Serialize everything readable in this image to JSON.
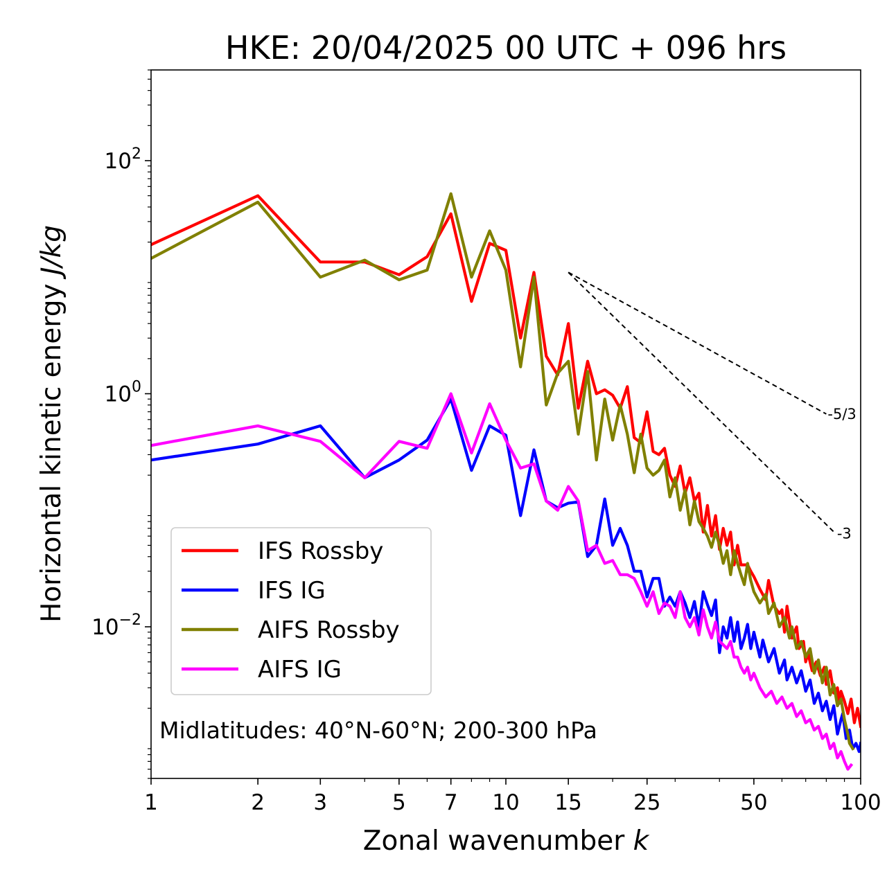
{
  "chart_data": {
    "type": "line",
    "title": "HKE: 20/04/2025 00 UTC + 096 hrs",
    "xlabel": "Zonal wavenumber k",
    "xlabel_parts": {
      "text": "Zonal wavenumber ",
      "var": "k"
    },
    "ylabel": "Horizontal kinetic energy J/kg",
    "ylabel_parts": {
      "text": "Horizontal kinetic energy ",
      "unit": "J/kg"
    },
    "x_scale": "log",
    "y_scale": "log",
    "xlim": [
      1,
      100
    ],
    "ylim": [
      0.0005,
      600
    ],
    "x_ticks": [
      1,
      2,
      3,
      5,
      7,
      10,
      15,
      25,
      50,
      100
    ],
    "x_tick_labels": [
      "1",
      "2",
      "3",
      "5",
      "7",
      "10",
      "15",
      "25",
      "50",
      "100"
    ],
    "y_ticks": [
      {
        "value": 100,
        "base": "10",
        "exp": "2"
      },
      {
        "value": 1,
        "base": "10",
        "exp": "0"
      },
      {
        "value": 0.01,
        "base": "10",
        "exp": "−2"
      }
    ],
    "grid": false,
    "legend_position": "lower-left",
    "annotation": "Midlatitudes: 40°N-60°N; 200-300 hPa",
    "reference_slopes": [
      {
        "label": "-5/3",
        "x": [
          15,
          80
        ],
        "y": [
          11,
          0.67
        ]
      },
      {
        "label": "-3",
        "x": [
          15,
          85
        ],
        "y": [
          11,
          0.063
        ]
      }
    ],
    "series": [
      {
        "name": "IFS Rossby",
        "color": "#ff0000",
        "points": [
          [
            1,
            19
          ],
          [
            2,
            50
          ],
          [
            3,
            13.5
          ],
          [
            4,
            13.5
          ],
          [
            5,
            10.5
          ],
          [
            6,
            15
          ],
          [
            7,
            35
          ],
          [
            8,
            6.2
          ],
          [
            9,
            19.5
          ],
          [
            10,
            17
          ],
          [
            11,
            3
          ],
          [
            12,
            11
          ],
          [
            13,
            2.1
          ],
          [
            14,
            1.45
          ],
          [
            15,
            4
          ],
          [
            16,
            0.75
          ],
          [
            17,
            1.9
          ],
          [
            18,
            1.0
          ],
          [
            19,
            1.08
          ],
          [
            20,
            0.97
          ],
          [
            21,
            0.75
          ],
          [
            22,
            1.15
          ],
          [
            23,
            0.42
          ],
          [
            24,
            0.38
          ],
          [
            25,
            0.7
          ],
          [
            26,
            0.32
          ],
          [
            27,
            0.3
          ],
          [
            28,
            0.34
          ],
          [
            29,
            0.2
          ],
          [
            30,
            0.16
          ],
          [
            31,
            0.24
          ],
          [
            32,
            0.14
          ],
          [
            33,
            0.19
          ],
          [
            34,
            0.12
          ],
          [
            35,
            0.14
          ],
          [
            36,
            0.065
          ],
          [
            37,
            0.11
          ],
          [
            38,
            0.06
          ],
          [
            39,
            0.09
          ],
          [
            40,
            0.046
          ],
          [
            41,
            0.07
          ],
          [
            42,
            0.05
          ],
          [
            43,
            0.065
          ],
          [
            44,
            0.034
          ],
          [
            45,
            0.05
          ],
          [
            46,
            0.034
          ],
          [
            47,
            0.034
          ],
          [
            48,
            0.034
          ],
          [
            49,
            0.03
          ],
          [
            50,
            0.027
          ],
          [
            52,
            0.021
          ],
          [
            54,
            0.017
          ],
          [
            55,
            0.025
          ],
          [
            57,
            0.015
          ],
          [
            59,
            0.013
          ],
          [
            60,
            0.014
          ],
          [
            61,
            0.009
          ],
          [
            62,
            0.015
          ],
          [
            64,
            0.008
          ],
          [
            66,
            0.01
          ],
          [
            67,
            0.0065
          ],
          [
            69,
            0.0075
          ],
          [
            70,
            0.005
          ],
          [
            71,
            0.006
          ],
          [
            73,
            0.0042
          ],
          [
            75,
            0.005
          ],
          [
            77,
            0.0038
          ],
          [
            79,
            0.0045
          ],
          [
            80,
            0.0032
          ],
          [
            82,
            0.0042
          ],
          [
            84,
            0.0027
          ],
          [
            86,
            0.003
          ],
          [
            87,
            0.0022
          ],
          [
            88,
            0.0028
          ],
          [
            90,
            0.0023
          ],
          [
            92,
            0.0018
          ],
          [
            94,
            0.0024
          ],
          [
            96,
            0.0015
          ],
          [
            98,
            0.002
          ],
          [
            100,
            0.0014
          ]
        ]
      },
      {
        "name": "IFS IG",
        "color": "#0000ff",
        "points": [
          [
            1,
            0.27
          ],
          [
            2,
            0.37
          ],
          [
            3,
            0.53
          ],
          [
            4,
            0.19
          ],
          [
            5,
            0.27
          ],
          [
            6,
            0.4
          ],
          [
            7,
            0.9
          ],
          [
            8,
            0.22
          ],
          [
            9,
            0.53
          ],
          [
            10,
            0.44
          ],
          [
            11,
            0.09
          ],
          [
            12,
            0.33
          ],
          [
            13,
            0.12
          ],
          [
            14,
            0.105
          ],
          [
            15,
            0.115
          ],
          [
            16,
            0.118
          ],
          [
            17,
            0.04
          ],
          [
            18,
            0.05
          ],
          [
            19,
            0.125
          ],
          [
            20,
            0.05
          ],
          [
            21,
            0.07
          ],
          [
            22,
            0.05
          ],
          [
            23,
            0.03
          ],
          [
            24,
            0.03
          ],
          [
            25,
            0.018
          ],
          [
            26,
            0.026
          ],
          [
            27,
            0.026
          ],
          [
            28,
            0.015
          ],
          [
            29,
            0.018
          ],
          [
            30,
            0.015
          ],
          [
            31,
            0.02
          ],
          [
            32,
            0.016
          ],
          [
            33,
            0.012
          ],
          [
            34,
            0.0165
          ],
          [
            35,
            0.01
          ],
          [
            36,
            0.02
          ],
          [
            37,
            0.0155
          ],
          [
            38,
            0.0125
          ],
          [
            39,
            0.017
          ],
          [
            40,
            0.006
          ],
          [
            41,
            0.01
          ],
          [
            42,
            0.008
          ],
          [
            43,
            0.012
          ],
          [
            44,
            0.0075
          ],
          [
            45,
            0.011
          ],
          [
            46,
            0.0065
          ],
          [
            47,
            0.008
          ],
          [
            48,
            0.0105
          ],
          [
            49,
            0.0065
          ],
          [
            50,
            0.009
          ],
          [
            52,
            0.0055
          ],
          [
            53,
            0.0077
          ],
          [
            55,
            0.005
          ],
          [
            57,
            0.0065
          ],
          [
            59,
            0.004
          ],
          [
            61,
            0.0052
          ],
          [
            62,
            0.0035
          ],
          [
            64,
            0.0045
          ],
          [
            66,
            0.0033
          ],
          [
            68,
            0.0042
          ],
          [
            70,
            0.0028
          ],
          [
            72,
            0.0035
          ],
          [
            74,
            0.0022
          ],
          [
            76,
            0.0027
          ],
          [
            78,
            0.0019
          ],
          [
            80,
            0.0023
          ],
          [
            82,
            0.0016
          ],
          [
            84,
            0.0021
          ],
          [
            86,
            0.0012
          ],
          [
            88,
            0.0016
          ],
          [
            89,
            0.0018
          ],
          [
            91,
            0.0011
          ],
          [
            93,
            0.0013
          ],
          [
            95,
            0.0009
          ],
          [
            97,
            0.001
          ],
          [
            99,
            0.00085
          ],
          [
            100,
            0.001
          ]
        ]
      },
      {
        "name": "AIFS Rossby",
        "color": "#808000",
        "points": [
          [
            1,
            14.5
          ],
          [
            2,
            44
          ],
          [
            3,
            10
          ],
          [
            4,
            14
          ],
          [
            5,
            9.5
          ],
          [
            6,
            11.5
          ],
          [
            7,
            52
          ],
          [
            8,
            10
          ],
          [
            9,
            25
          ],
          [
            10,
            11.5
          ],
          [
            11,
            1.7
          ],
          [
            12,
            10
          ],
          [
            13,
            0.8
          ],
          [
            14,
            1.5
          ],
          [
            15,
            1.9
          ],
          [
            16,
            0.45
          ],
          [
            17,
            1.55
          ],
          [
            18,
            0.27
          ],
          [
            19,
            0.9
          ],
          [
            20,
            0.4
          ],
          [
            21,
            0.8
          ],
          [
            22,
            0.45
          ],
          [
            23,
            0.21
          ],
          [
            24,
            0.45
          ],
          [
            25,
            0.23
          ],
          [
            26,
            0.2
          ],
          [
            27,
            0.22
          ],
          [
            28,
            0.27
          ],
          [
            29,
            0.13
          ],
          [
            30,
            0.19
          ],
          [
            31,
            0.1
          ],
          [
            32,
            0.15
          ],
          [
            33,
            0.075
          ],
          [
            34,
            0.12
          ],
          [
            35,
            0.08
          ],
          [
            36,
            0.07
          ],
          [
            37,
            0.06
          ],
          [
            38,
            0.048
          ],
          [
            39,
            0.065
          ],
          [
            40,
            0.05
          ],
          [
            41,
            0.035
          ],
          [
            42,
            0.045
          ],
          [
            43,
            0.028
          ],
          [
            44,
            0.045
          ],
          [
            45,
            0.035
          ],
          [
            46,
            0.028
          ],
          [
            47,
            0.023
          ],
          [
            48,
            0.035
          ],
          [
            49,
            0.025
          ],
          [
            50,
            0.02
          ],
          [
            52,
            0.016
          ],
          [
            54,
            0.019
          ],
          [
            55,
            0.013
          ],
          [
            57,
            0.016
          ],
          [
            59,
            0.01
          ],
          [
            61,
            0.012
          ],
          [
            63,
            0.008
          ],
          [
            64,
            0.01
          ],
          [
            66,
            0.0065
          ],
          [
            68,
            0.0075
          ],
          [
            70,
            0.0055
          ],
          [
            72,
            0.0065
          ],
          [
            74,
            0.004
          ],
          [
            76,
            0.0052
          ],
          [
            78,
            0.0033
          ],
          [
            80,
            0.0045
          ],
          [
            82,
            0.0026
          ],
          [
            84,
            0.0032
          ],
          [
            86,
            0.0021
          ],
          [
            88,
            0.0024
          ],
          [
            90,
            0.0016
          ],
          [
            92,
            0.0012
          ],
          [
            93,
            0.001
          ],
          [
            95,
            0.0009
          ]
        ]
      },
      {
        "name": "AIFS IG",
        "color": "#ff00ff",
        "points": [
          [
            1,
            0.36
          ],
          [
            2,
            0.53
          ],
          [
            3,
            0.39
          ],
          [
            4,
            0.19
          ],
          [
            5,
            0.39
          ],
          [
            6,
            0.34
          ],
          [
            7,
            1.0
          ],
          [
            8,
            0.31
          ],
          [
            9,
            0.82
          ],
          [
            10,
            0.4
          ],
          [
            11,
            0.23
          ],
          [
            12,
            0.25
          ],
          [
            13,
            0.12
          ],
          [
            14,
            0.1
          ],
          [
            15,
            0.16
          ],
          [
            16,
            0.12
          ],
          [
            17,
            0.045
          ],
          [
            18,
            0.05
          ],
          [
            19,
            0.035
          ],
          [
            20,
            0.037
          ],
          [
            21,
            0.028
          ],
          [
            22,
            0.028
          ],
          [
            23,
            0.026
          ],
          [
            24,
            0.02
          ],
          [
            25,
            0.015
          ],
          [
            26,
            0.02
          ],
          [
            27,
            0.013
          ],
          [
            28,
            0.016
          ],
          [
            29,
            0.015
          ],
          [
            30,
            0.012
          ],
          [
            31,
            0.02
          ],
          [
            32,
            0.012
          ],
          [
            33,
            0.01
          ],
          [
            34,
            0.012
          ],
          [
            35,
            0.0085
          ],
          [
            36,
            0.014
          ],
          [
            37,
            0.01
          ],
          [
            38,
            0.008
          ],
          [
            39,
            0.011
          ],
          [
            40,
            0.0075
          ],
          [
            41,
            0.007
          ],
          [
            42,
            0.0065
          ],
          [
            43,
            0.0075
          ],
          [
            44,
            0.0055
          ],
          [
            45,
            0.0055
          ],
          [
            46,
            0.0045
          ],
          [
            47,
            0.004
          ],
          [
            48,
            0.0045
          ],
          [
            49,
            0.0035
          ],
          [
            50,
            0.004
          ],
          [
            52,
            0.003
          ],
          [
            54,
            0.0025
          ],
          [
            56,
            0.0028
          ],
          [
            58,
            0.0022
          ],
          [
            60,
            0.0025
          ],
          [
            62,
            0.002
          ],
          [
            64,
            0.0022
          ],
          [
            66,
            0.0017
          ],
          [
            68,
            0.0019
          ],
          [
            70,
            0.0015
          ],
          [
            72,
            0.0016
          ],
          [
            74,
            0.0013
          ],
          [
            76,
            0.0014
          ],
          [
            78,
            0.0011
          ],
          [
            80,
            0.0012
          ],
          [
            82,
            0.0009
          ],
          [
            84,
            0.001
          ],
          [
            86,
            0.00075
          ],
          [
            88,
            0.00085
          ],
          [
            90,
            0.0007
          ],
          [
            92,
            0.0006
          ],
          [
            94,
            0.00065
          ]
        ]
      }
    ]
  }
}
